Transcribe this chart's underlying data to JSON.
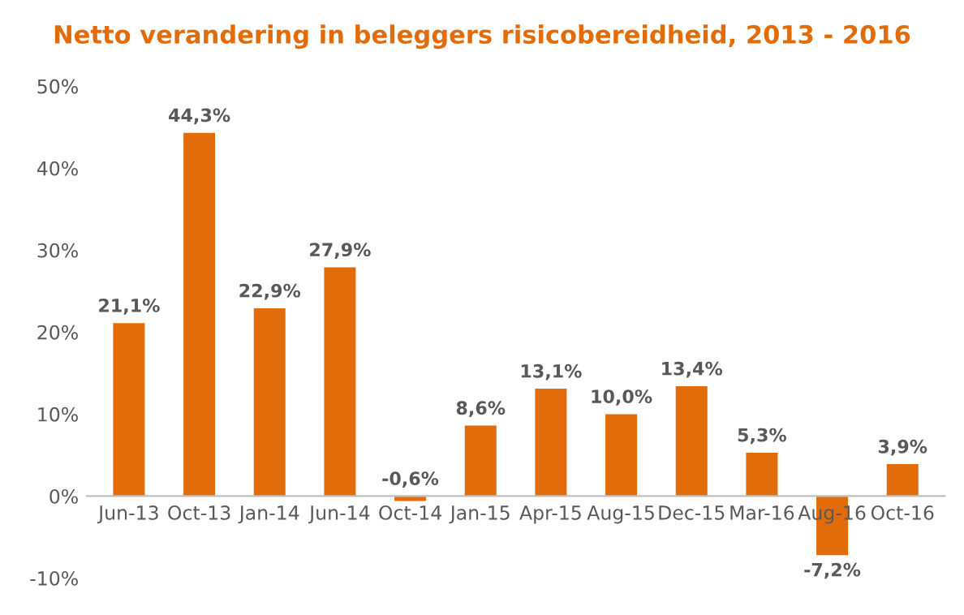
{
  "chart_data": {
    "type": "bar",
    "title": "Netto verandering in beleggers risicobereidheid, 2013 - 2016",
    "categories": [
      "Jun-13",
      "Oct-13",
      "Jan-14",
      "Jun-14",
      "Oct-14",
      "Jan-15",
      "Apr-15",
      "Aug-15",
      "Dec-15",
      "Mar-16",
      "Aug-16",
      "Oct-16"
    ],
    "values": [
      21.1,
      44.3,
      22.9,
      27.9,
      -0.6,
      8.6,
      13.1,
      10.0,
      13.4,
      5.3,
      -7.2,
      3.9
    ],
    "value_labels": [
      "21,1%",
      "44,3%",
      "22,9%",
      "27,9%",
      "-0,6%",
      "8,6%",
      "13,1%",
      "10,0%",
      "13,4%",
      "5,3%",
      "-7,2%",
      "3,9%"
    ],
    "color": "#e36c0a",
    "ylim": [
      -10,
      50
    ],
    "yticks": [
      {
        "value": -10,
        "label": "-10%"
      },
      {
        "value": 0,
        "label": "0%"
      },
      {
        "value": 10,
        "label": "10%"
      },
      {
        "value": 20,
        "label": "20%"
      },
      {
        "value": 30,
        "label": "30%"
      },
      {
        "value": 40,
        "label": "40%"
      },
      {
        "value": 50,
        "label": "50%"
      }
    ],
    "grid": false,
    "legend": false
  }
}
